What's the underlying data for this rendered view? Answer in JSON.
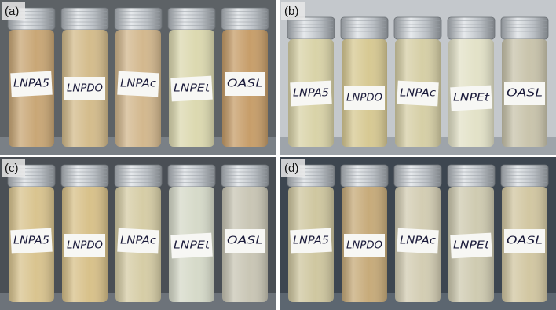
{
  "panels": [
    {
      "label": "(a)",
      "vials": [
        "LNPA5",
        "LNPDO",
        "LNPAc",
        "LNPEt",
        "OASL"
      ]
    },
    {
      "label": "(b)",
      "vials": [
        "LNPA5",
        "LNPDO",
        "LNPAc",
        "LNPEt",
        "OASL"
      ]
    },
    {
      "label": "(c)",
      "vials": [
        "LNPA5",
        "LNPDO",
        "LNPAc",
        "LNPEt",
        "OASL"
      ]
    },
    {
      "label": "(d)",
      "vials": [
        "LNPA5",
        "LNPDO",
        "LNPAc",
        "LNPEt",
        "OASL"
      ]
    }
  ]
}
